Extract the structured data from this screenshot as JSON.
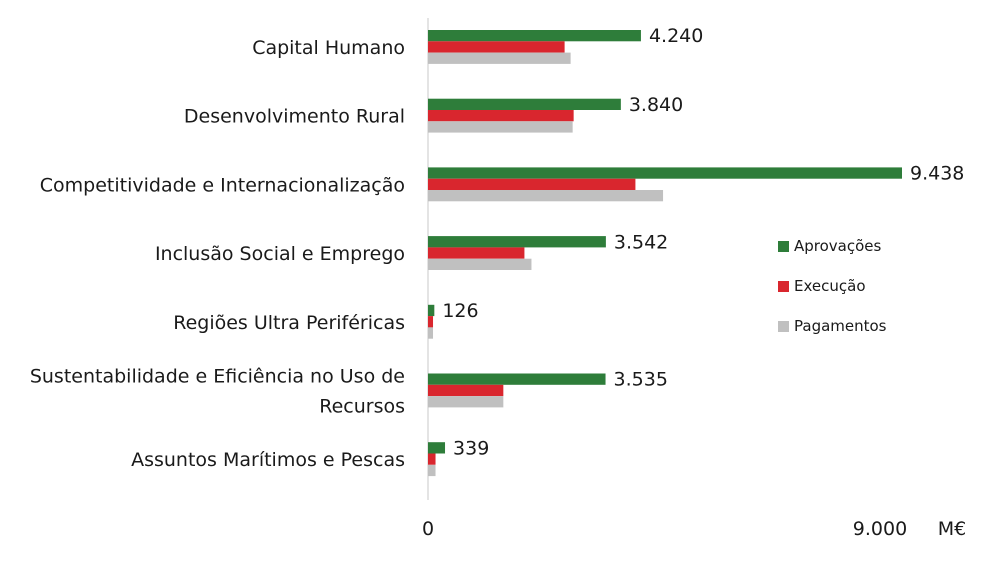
{
  "chart_data": {
    "type": "bar",
    "orientation": "horizontal",
    "categories": [
      [
        "Capital Humano"
      ],
      [
        "Desenvolvimento Rural"
      ],
      [
        "Competitividade e Internacionalização"
      ],
      [
        "Inclusão Social e Emprego"
      ],
      [
        "Regiões Ultra Periféricas"
      ],
      [
        "Sustentabilidade e Eficiência no Uso de",
        "Recursos"
      ],
      [
        "Assuntos Marítimos e Pescas"
      ]
    ],
    "series": [
      {
        "name": "Aprovações",
        "color": "#2e7d3a",
        "values": [
          4240,
          3840,
          9438,
          3542,
          126,
          3535,
          339
        ],
        "labels": [
          "4.240",
          "3.840",
          "9.438",
          "3.542",
          "126",
          "3.535",
          "339"
        ]
      },
      {
        "name": "Execução",
        "color": "#d9262e",
        "values": [
          2720,
          2900,
          4130,
          1920,
          100,
          1500,
          150
        ]
      },
      {
        "name": "Pagamentos",
        "color": "#c0c0c0",
        "values": [
          2840,
          2880,
          4680,
          2060,
          100,
          1500,
          150
        ]
      }
    ],
    "xlim": [
      0,
      9000
    ],
    "xticks": [
      "0",
      "9.000"
    ],
    "unit": "M€",
    "legend_position": "right",
    "grid": false
  }
}
